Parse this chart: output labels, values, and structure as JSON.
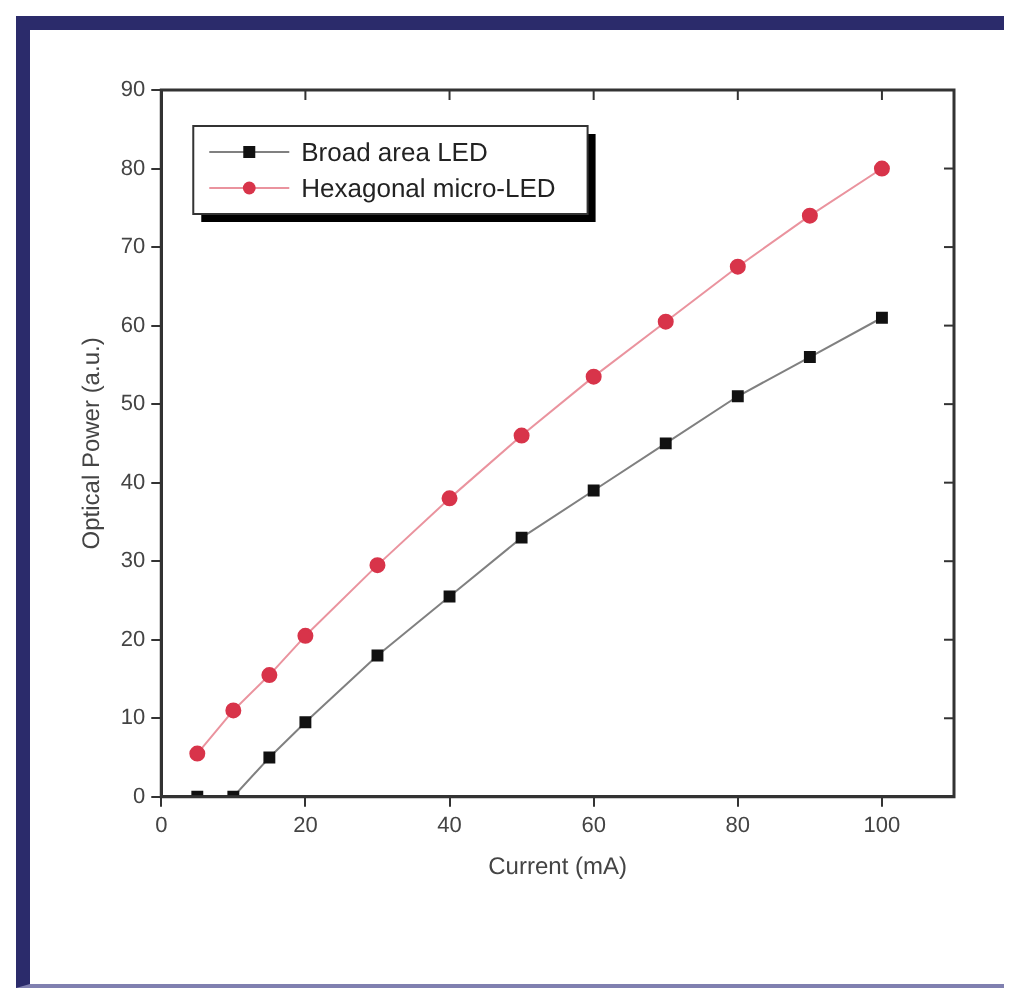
{
  "chart_data": {
    "type": "line",
    "xlabel": "Current (mA)",
    "ylabel": "Optical Power (a.u.)",
    "x": [
      5,
      10,
      15,
      20,
      30,
      40,
      50,
      60,
      70,
      80,
      90,
      100
    ],
    "series": [
      {
        "name": "Broad area LED",
        "color": "#111111",
        "marker": "square",
        "values": [
          0,
          0,
          5,
          9.5,
          18,
          25.5,
          33,
          39,
          45,
          51,
          56,
          61
        ]
      },
      {
        "name": "Hexagonal micro-LED",
        "color": "#d8344a",
        "marker": "circle",
        "values": [
          5.5,
          11,
          15.5,
          20.5,
          29.5,
          38,
          46,
          53.5,
          60.5,
          67.5,
          74,
          80
        ]
      }
    ],
    "xlim": [
      0,
      110
    ],
    "xticks": [
      0,
      20,
      40,
      60,
      80,
      100
    ],
    "ylim": [
      0,
      90
    ],
    "yticks": [
      0,
      10,
      20,
      30,
      40,
      50,
      60,
      70,
      80,
      90
    ],
    "grid": false,
    "legend": "top left",
    "line_style": "solid"
  }
}
